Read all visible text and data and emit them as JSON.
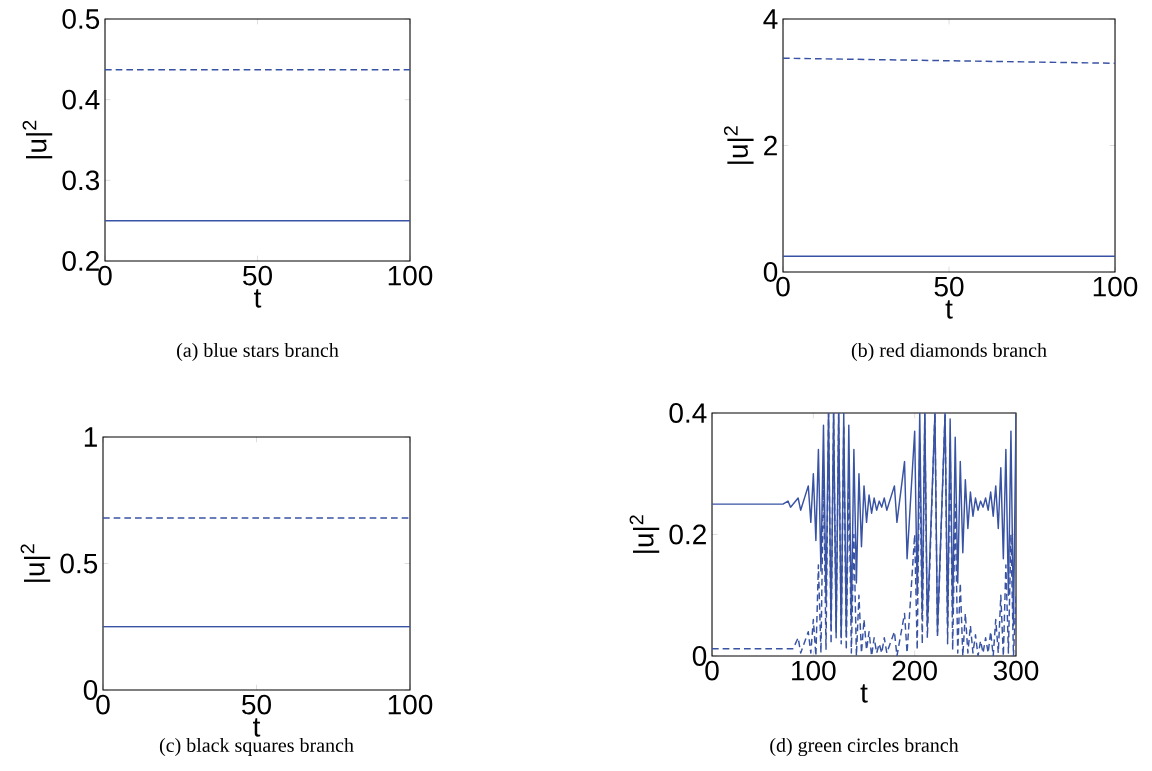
{
  "chart_data": [
    {
      "type": "line",
      "title": "(a)  blue stars branch",
      "xlabel": "t",
      "ylabel": "|u|$^{2}$",
      "xlim": [
        0,
        100
      ],
      "ylim": [
        0.2,
        0.5
      ],
      "xticks": [
        0,
        50,
        100
      ],
      "yticks": [
        0.2,
        0.3,
        0.4,
        0.5
      ],
      "series": [
        {
          "color": "#3953a4",
          "line_style": "dashed",
          "x": [
            0,
            100
          ],
          "values": [
            0.437,
            0.437
          ]
        },
        {
          "color": "#3953a4",
          "line_style": "solid",
          "x": [
            0,
            100
          ],
          "values": [
            0.25,
            0.25
          ]
        }
      ]
    },
    {
      "type": "line",
      "title": "(b)  red diamonds branch",
      "xlabel": "t",
      "ylabel": "|u|$^{2}$",
      "xlim": [
        0,
        100
      ],
      "ylim": [
        0,
        4
      ],
      "xticks": [
        0,
        50,
        100
      ],
      "yticks": [
        0,
        2,
        4
      ],
      "series": [
        {
          "color": "#3953a4",
          "line_style": "dashed",
          "x": [
            0,
            100
          ],
          "values": [
            3.38,
            3.3
          ]
        },
        {
          "color": "#3953a4",
          "line_style": "solid",
          "x": [
            0,
            100
          ],
          "values": [
            0.25,
            0.25
          ]
        }
      ]
    },
    {
      "type": "line",
      "title": "(c)  black squares branch",
      "xlabel": "t",
      "ylabel": "|u|$^{2}$",
      "xlim": [
        0,
        100
      ],
      "ylim": [
        0,
        1
      ],
      "xticks": [
        0,
        50,
        100
      ],
      "yticks": [
        0,
        0.5,
        1
      ],
      "series": [
        {
          "color": "#3953a4",
          "line_style": "dashed",
          "x": [
            0,
            100
          ],
          "values": [
            0.68,
            0.68
          ]
        },
        {
          "color": "#3953a4",
          "line_style": "solid",
          "x": [
            0,
            100
          ],
          "values": [
            0.25,
            0.25
          ]
        }
      ]
    },
    {
      "type": "line",
      "title": "(d)  green circles branch",
      "xlabel": "t",
      "ylabel": "|u|$^{2}$",
      "xlim": [
        0,
        300
      ],
      "ylim": [
        0,
        0.4
      ],
      "xticks": [
        0,
        100,
        200,
        300
      ],
      "yticks": [
        0,
        0.2,
        0.4
      ],
      "series": [
        {
          "color": "#3953a4",
          "line_style": "dashed",
          "x": [
            0,
            80,
            85,
            87.5,
            95,
            97.5,
            100,
            102.5,
            105,
            107.5,
            110,
            112.5,
            115,
            117.5,
            120,
            122.5,
            125,
            127.5,
            130,
            132.5,
            135,
            137.5,
            140,
            142.5,
            145,
            147.5,
            150,
            152.5,
            155,
            157.5,
            160,
            162.5,
            165,
            167.5,
            170,
            172.5,
            180,
            182.5,
            190,
            192.5,
            200,
            202.5,
            205,
            207.5,
            210,
            212.5,
            220,
            222.5,
            230,
            232.5,
            235,
            237.5,
            240,
            242.5,
            245,
            247.5,
            250,
            252.5,
            255,
            257.5,
            260,
            262.5,
            265,
            267.5,
            270,
            272.5,
            275,
            277.5,
            280,
            282.5,
            285,
            287.5,
            290,
            292.5,
            295,
            297.5,
            300
          ],
          "values": [
            0.012,
            0.012,
            0.03,
            0.005,
            0.04,
            0.005,
            0.06,
            0,
            0.15,
            0.005,
            0.3,
            0.01,
            0.4,
            0.02,
            0.4,
            0.03,
            0.4,
            0.02,
            0.38,
            0.01,
            0.3,
            0.005,
            0.2,
            0,
            0.1,
            0.005,
            0.06,
            0.01,
            0.04,
            0,
            0.03,
            0.005,
            0.02,
            0.005,
            0.03,
            0.005,
            0.04,
            0,
            0.07,
            0.005,
            0.2,
            0.01,
            0.35,
            0.02,
            0.4,
            0.03,
            0.4,
            0.03,
            0.4,
            0.02,
            0.35,
            0.01,
            0.25,
            0.005,
            0.12,
            0,
            0.07,
            0.005,
            0.05,
            0.005,
            0.035,
            0,
            0.025,
            0.005,
            0.03,
            0.005,
            0.04,
            0,
            0.06,
            0.005,
            0.1,
            0,
            0.15,
            0.005,
            0.2,
            0,
            0.1
          ]
        },
        {
          "color": "#3953a4",
          "line_style": "solid",
          "x": [
            0,
            70,
            75,
            77.5,
            85,
            87.5,
            95,
            97.5,
            100,
            102.5,
            105,
            107.5,
            110,
            112.5,
            115,
            117.5,
            120,
            122.5,
            125,
            127.5,
            130,
            132.5,
            135,
            137.5,
            140,
            142.5,
            145,
            147.5,
            150,
            152.5,
            155,
            157.5,
            160,
            162.5,
            165,
            167.5,
            170,
            172.5,
            180,
            182.5,
            190,
            192.5,
            200,
            202.5,
            205,
            207.5,
            210,
            212.5,
            220,
            222.5,
            230,
            232.5,
            235,
            237.5,
            240,
            242.5,
            245,
            247.5,
            250,
            252.5,
            255,
            257.5,
            260,
            262.5,
            265,
            267.5,
            270,
            272.5,
            275,
            277.5,
            280,
            282.5,
            285,
            287.5,
            290,
            292.5,
            295,
            297.5,
            300
          ],
          "values": [
            0.25,
            0.25,
            0.255,
            0.245,
            0.26,
            0.24,
            0.28,
            0.22,
            0.3,
            0.19,
            0.34,
            0.14,
            0.38,
            0.09,
            0.4,
            0.05,
            0.4,
            0.04,
            0.4,
            0.03,
            0.4,
            0.04,
            0.38,
            0.06,
            0.34,
            0.12,
            0.3,
            0.18,
            0.28,
            0.22,
            0.265,
            0.235,
            0.26,
            0.24,
            0.255,
            0.245,
            0.26,
            0.24,
            0.28,
            0.22,
            0.32,
            0.16,
            0.37,
            0.1,
            0.4,
            0.07,
            0.4,
            0.05,
            0.4,
            0.04,
            0.4,
            0.05,
            0.39,
            0.07,
            0.36,
            0.12,
            0.32,
            0.17,
            0.29,
            0.21,
            0.27,
            0.23,
            0.26,
            0.24,
            0.255,
            0.245,
            0.26,
            0.24,
            0.27,
            0.23,
            0.28,
            0.21,
            0.31,
            0.16,
            0.34,
            0.1,
            0.37,
            0.05,
            0.4
          ]
        }
      ]
    }
  ]
}
